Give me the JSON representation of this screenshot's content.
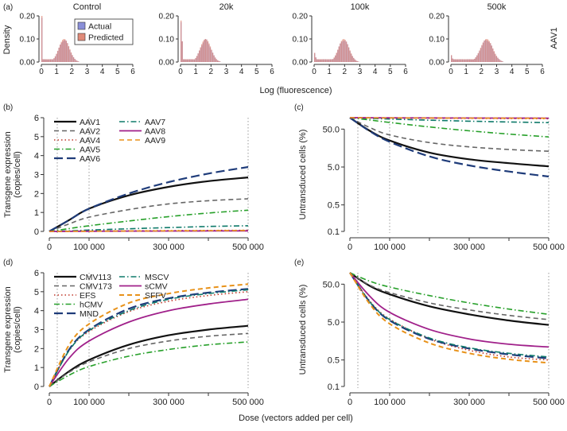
{
  "figure": {
    "shared_xlabel": "Dose (vectors added per cell)",
    "side_label": "AAV1"
  },
  "chart_data": [
    {
      "id": "a",
      "panel_label": "(a)",
      "type": "bar",
      "subtype": "histogram-overlay",
      "ylabel": "Density",
      "xlabel": "Log (fluorescence)",
      "xlim": [
        0,
        6
      ],
      "ylim": [
        0,
        0.2
      ],
      "xticks": [
        "0",
        "1",
        "2",
        "3",
        "4",
        "5",
        "6"
      ],
      "yticks": [
        "0.00",
        "0.10",
        "0.20"
      ],
      "legend": [
        "Actual",
        "Predicted"
      ],
      "colors": {
        "Actual": "#8a8fd8",
        "Predicted": "#e08a78"
      },
      "subpanels": [
        {
          "title": "Control",
          "center": 1.5,
          "sd": 0.35,
          "peak": 0.1,
          "spike": 0.2,
          "spike_bins": 1
        },
        {
          "title": "20k",
          "center": 1.65,
          "sd": 0.35,
          "peak": 0.1,
          "spike": 0.18,
          "spike_bins": 2
        },
        {
          "title": "100k",
          "center": 1.95,
          "sd": 0.35,
          "peak": 0.1,
          "spike": 0.04,
          "spike_bins": 2
        },
        {
          "title": "500k",
          "center": 2.35,
          "sd": 0.4,
          "peak": 0.1,
          "spike": 0.03,
          "spike_bins": 2
        }
      ]
    },
    {
      "id": "b",
      "panel_label": "(b)",
      "type": "line",
      "ylabel": "Transgene expression\n(copies/cell)",
      "xlim": [
        0,
        500000
      ],
      "ylim": [
        0,
        6
      ],
      "xticks": [
        "0",
        "100 000",
        "300 000",
        "500 000"
      ],
      "xtick_values": [
        0,
        100000,
        300000,
        500000
      ],
      "yticks": [
        "0",
        "1",
        "2",
        "3",
        "4",
        "5",
        "6"
      ],
      "vlines": [
        20000,
        100000,
        500000
      ],
      "series": [
        {
          "name": "AAV1",
          "color": "#111111",
          "dash": "solid",
          "width": 2.2,
          "x": [
            0,
            50000,
            100000,
            200000,
            300000,
            400000,
            500000
          ],
          "values": [
            0,
            0.6,
            1.2,
            1.9,
            2.35,
            2.65,
            2.85
          ]
        },
        {
          "name": "AAV2",
          "color": "#666666",
          "dash": "dash",
          "width": 1.6,
          "x": [
            0,
            50000,
            100000,
            200000,
            300000,
            400000,
            500000
          ],
          "values": [
            0,
            0.4,
            0.75,
            1.15,
            1.45,
            1.62,
            1.72
          ]
        },
        {
          "name": "AAV4",
          "color": "#c0392b",
          "dash": "dot",
          "width": 1.6,
          "x": [
            0,
            50000,
            100000,
            200000,
            300000,
            400000,
            500000
          ],
          "values": [
            0,
            0.01,
            0.02,
            0.03,
            0.04,
            0.05,
            0.06
          ]
        },
        {
          "name": "AAV5",
          "color": "#27a02a",
          "dash": "dashdot",
          "width": 1.6,
          "x": [
            0,
            50000,
            100000,
            200000,
            300000,
            400000,
            500000
          ],
          "values": [
            0,
            0.15,
            0.3,
            0.55,
            0.78,
            0.97,
            1.12
          ]
        },
        {
          "name": "AAV6",
          "color": "#1f3c7a",
          "dash": "longdash",
          "width": 2.2,
          "x": [
            0,
            50000,
            100000,
            200000,
            300000,
            400000,
            500000
          ],
          "values": [
            0,
            0.6,
            1.2,
            2.0,
            2.6,
            3.05,
            3.4
          ]
        },
        {
          "name": "AAV7",
          "color": "#0f7a6a",
          "dash": "dashdot",
          "width": 1.6,
          "x": [
            0,
            50000,
            100000,
            200000,
            300000,
            400000,
            500000
          ],
          "values": [
            0,
            0.03,
            0.07,
            0.14,
            0.2,
            0.26,
            0.3
          ]
        },
        {
          "name": "AAV8",
          "color": "#a0208a",
          "dash": "solid",
          "width": 1.8,
          "x": [
            0,
            50000,
            100000,
            200000,
            300000,
            400000,
            500000
          ],
          "values": [
            0,
            0.005,
            0.01,
            0.015,
            0.02,
            0.025,
            0.03
          ]
        },
        {
          "name": "AAV9",
          "color": "#e8921a",
          "dash": "dash",
          "width": 1.6,
          "x": [
            0,
            50000,
            100000,
            200000,
            300000,
            400000,
            500000
          ],
          "values": [
            0,
            0.005,
            0.01,
            0.02,
            0.03,
            0.04,
            0.05
          ]
        }
      ]
    },
    {
      "id": "c",
      "panel_label": "(c)",
      "type": "line",
      "yscale": "log",
      "ylabel": "Untransduced cells (%)",
      "xlim": [
        0,
        500000
      ],
      "ylim": [
        0.1,
        100
      ],
      "xticks": [
        "0",
        "100 000",
        "300 000",
        "500 000"
      ],
      "xtick_values": [
        0,
        100000,
        300000,
        500000
      ],
      "yticks": [
        "0.1",
        "0.5",
        "5.0",
        "50.0"
      ],
      "ytick_values": [
        0.1,
        0.5,
        5,
        50
      ],
      "vlines": [
        20000,
        100000,
        500000
      ],
      "series": [
        {
          "name": "AAV1",
          "color": "#111111",
          "dash": "solid",
          "width": 2.2,
          "x": [
            0,
            50000,
            100000,
            200000,
            300000,
            400000,
            500000
          ],
          "values": [
            100,
            45,
            25,
            12,
            8,
            6.3,
            5.2
          ]
        },
        {
          "name": "AAV2",
          "color": "#666666",
          "dash": "dash",
          "width": 1.6,
          "x": [
            0,
            50000,
            100000,
            200000,
            300000,
            400000,
            500000
          ],
          "values": [
            100,
            55,
            35,
            22,
            17,
            14.5,
            13
          ]
        },
        {
          "name": "AAV4",
          "color": "#c0392b",
          "dash": "dot",
          "width": 1.6,
          "x": [
            0,
            50000,
            100000,
            200000,
            300000,
            400000,
            500000
          ],
          "values": [
            100,
            99,
            98,
            97,
            96,
            95,
            94
          ]
        },
        {
          "name": "AAV5",
          "color": "#27a02a",
          "dash": "dashdot",
          "width": 1.6,
          "x": [
            0,
            50000,
            100000,
            200000,
            300000,
            400000,
            500000
          ],
          "values": [
            100,
            87,
            75,
            57,
            45,
            37,
            31
          ]
        },
        {
          "name": "AAV6",
          "color": "#1f3c7a",
          "dash": "longdash",
          "width": 2.2,
          "x": [
            0,
            50000,
            100000,
            200000,
            300000,
            400000,
            500000
          ],
          "values": [
            100,
            44,
            23,
            9.5,
            5.5,
            3.8,
            2.8
          ]
        },
        {
          "name": "AAV7",
          "color": "#0f7a6a",
          "dash": "dashdot",
          "width": 1.6,
          "x": [
            0,
            50000,
            100000,
            200000,
            300000,
            400000,
            500000
          ],
          "values": [
            100,
            96,
            92,
            86,
            81,
            77,
            74
          ]
        },
        {
          "name": "AAV8",
          "color": "#a0208a",
          "dash": "solid",
          "width": 1.8,
          "x": [
            0,
            50000,
            100000,
            200000,
            300000,
            400000,
            500000
          ],
          "values": [
            100,
            99.5,
            99,
            98.5,
            98,
            97.5,
            97
          ]
        },
        {
          "name": "AAV9",
          "color": "#e8921a",
          "dash": "dash",
          "width": 1.6,
          "x": [
            0,
            50000,
            100000,
            200000,
            300000,
            400000,
            500000
          ],
          "values": [
            100,
            99,
            98.5,
            98,
            97.5,
            97,
            96.5
          ]
        }
      ]
    },
    {
      "id": "d",
      "panel_label": "(d)",
      "type": "line",
      "ylabel": "Transgene expression\n(copies/cell)",
      "xlim": [
        0,
        500000
      ],
      "ylim": [
        0,
        6
      ],
      "xticks": [
        "0",
        "100 000",
        "300 000",
        "500 000"
      ],
      "xtick_values": [
        0,
        100000,
        300000,
        500000
      ],
      "yticks": [
        "0",
        "1",
        "2",
        "3",
        "4",
        "5",
        "6"
      ],
      "vlines": [
        20000,
        100000,
        500000
      ],
      "series": [
        {
          "name": "CMV113",
          "color": "#111111",
          "dash": "solid",
          "width": 2.2,
          "x": [
            0,
            50000,
            100000,
            200000,
            300000,
            400000,
            500000
          ],
          "values": [
            0,
            0.8,
            1.4,
            2.2,
            2.7,
            3.0,
            3.2
          ]
        },
        {
          "name": "CMV173",
          "color": "#666666",
          "dash": "dash",
          "width": 1.6,
          "x": [
            0,
            50000,
            100000,
            200000,
            300000,
            400000,
            500000
          ],
          "values": [
            0,
            0.75,
            1.3,
            2.0,
            2.4,
            2.65,
            2.8
          ]
        },
        {
          "name": "EFS",
          "color": "#c0392b",
          "dash": "dot",
          "width": 1.6,
          "x": [
            0,
            50000,
            100000,
            200000,
            300000,
            400000,
            500000
          ],
          "values": [
            0,
            1.9,
            2.9,
            3.95,
            4.5,
            4.8,
            5.0
          ]
        },
        {
          "name": "hCMV",
          "color": "#27a02a",
          "dash": "dashdot",
          "width": 1.6,
          "x": [
            0,
            50000,
            100000,
            200000,
            300000,
            400000,
            500000
          ],
          "values": [
            0,
            0.6,
            1.05,
            1.6,
            1.95,
            2.2,
            2.35
          ]
        },
        {
          "name": "MND",
          "color": "#1f3c7a",
          "dash": "longdash",
          "width": 2.2,
          "x": [
            0,
            50000,
            100000,
            200000,
            300000,
            400000,
            500000
          ],
          "values": [
            0,
            1.95,
            3.0,
            4.1,
            4.65,
            4.95,
            5.15
          ]
        },
        {
          "name": "MSCV",
          "color": "#0f7a6a",
          "dash": "dashdot",
          "width": 1.6,
          "x": [
            0,
            50000,
            100000,
            200000,
            300000,
            400000,
            500000
          ],
          "values": [
            0,
            1.9,
            2.95,
            4.0,
            4.6,
            4.9,
            5.1
          ]
        },
        {
          "name": "sCMV",
          "color": "#a0208a",
          "dash": "solid",
          "width": 1.8,
          "x": [
            0,
            50000,
            100000,
            200000,
            300000,
            400000,
            500000
          ],
          "values": [
            0,
            1.5,
            2.4,
            3.4,
            4.0,
            4.35,
            4.6
          ]
        },
        {
          "name": "SFFV",
          "color": "#e8921a",
          "dash": "dash",
          "width": 2.0,
          "x": [
            0,
            50000,
            100000,
            200000,
            300000,
            400000,
            500000
          ],
          "values": [
            0,
            2.2,
            3.3,
            4.4,
            4.9,
            5.2,
            5.4
          ]
        }
      ]
    },
    {
      "id": "e",
      "panel_label": "(e)",
      "type": "line",
      "yscale": "log",
      "ylabel": "Untransduced cells (%)",
      "xlim": [
        0,
        500000
      ],
      "ylim": [
        0.1,
        100
      ],
      "xticks": [
        "0",
        "100 000",
        "300 000",
        "500 000"
      ],
      "xtick_values": [
        0,
        100000,
        300000,
        500000
      ],
      "yticks": [
        "0.1",
        "0.5",
        "5.0",
        "50.0"
      ],
      "ytick_values": [
        0.1,
        0.5,
        5,
        50
      ],
      "vlines": [
        20000,
        100000,
        500000
      ],
      "series": [
        {
          "name": "CMV113",
          "color": "#111111",
          "dash": "solid",
          "width": 2.2,
          "x": [
            0,
            50000,
            100000,
            200000,
            300000,
            400000,
            500000
          ],
          "values": [
            100,
            45,
            27,
            13,
            8,
            5.5,
            4.2
          ]
        },
        {
          "name": "CMV173",
          "color": "#666666",
          "dash": "dash",
          "width": 1.6,
          "x": [
            0,
            50000,
            100000,
            200000,
            300000,
            400000,
            500000
          ],
          "values": [
            100,
            47,
            30,
            16,
            10.5,
            7.5,
            5.8
          ]
        },
        {
          "name": "EFS",
          "color": "#c0392b",
          "dash": "dot",
          "width": 1.6,
          "x": [
            0,
            50000,
            100000,
            200000,
            300000,
            400000,
            500000
          ],
          "values": [
            100,
            18,
            6,
            1.8,
            0.9,
            0.6,
            0.5
          ]
        },
        {
          "name": "hCMV",
          "color": "#27a02a",
          "dash": "dashdot",
          "width": 1.6,
          "x": [
            0,
            50000,
            100000,
            200000,
            300000,
            400000,
            500000
          ],
          "values": [
            100,
            60,
            42,
            25,
            16,
            11,
            8
          ]
        },
        {
          "name": "MND",
          "color": "#1f3c7a",
          "dash": "longdash",
          "width": 2.2,
          "x": [
            0,
            50000,
            100000,
            200000,
            300000,
            400000,
            500000
          ],
          "values": [
            100,
            17,
            5.5,
            1.8,
            1.0,
            0.7,
            0.55
          ]
        },
        {
          "name": "MSCV",
          "color": "#0f7a6a",
          "dash": "dashdot",
          "width": 1.6,
          "x": [
            0,
            50000,
            100000,
            200000,
            300000,
            400000,
            500000
          ],
          "values": [
            100,
            17,
            5.8,
            1.9,
            1.05,
            0.75,
            0.6
          ]
        },
        {
          "name": "sCMV",
          "color": "#a0208a",
          "dash": "solid",
          "width": 1.8,
          "x": [
            0,
            50000,
            100000,
            200000,
            300000,
            400000,
            500000
          ],
          "values": [
            100,
            24,
            9,
            3.2,
            1.8,
            1.3,
            1.1
          ]
        },
        {
          "name": "SFFV",
          "color": "#e8921a",
          "dash": "dash",
          "width": 2.0,
          "x": [
            0,
            50000,
            100000,
            200000,
            300000,
            400000,
            500000
          ],
          "values": [
            100,
            15,
            4.5,
            1.4,
            0.75,
            0.52,
            0.42
          ]
        }
      ]
    }
  ]
}
